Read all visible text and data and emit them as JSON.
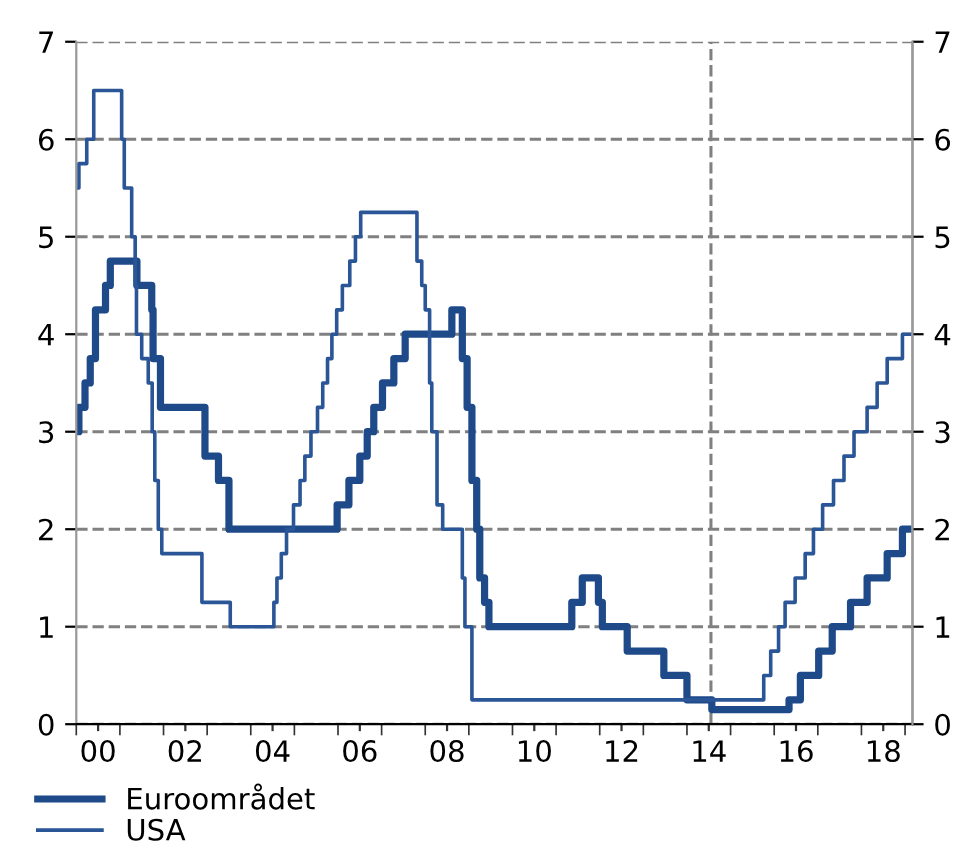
{
  "chart_data": {
    "type": "step",
    "xlim": [
      -0.5,
      18.67
    ],
    "xticks": [
      {
        "value": -0.5,
        "label": null
      },
      {
        "value": 0.5,
        "label": null
      },
      {
        "value": 1.5,
        "label": null
      },
      {
        "value": 2.5,
        "label": null
      },
      {
        "value": 3.5,
        "label": null
      },
      {
        "value": 4.5,
        "label": null
      },
      {
        "value": 5.5,
        "label": null
      },
      {
        "value": 6.5,
        "label": null
      },
      {
        "value": 7.5,
        "label": null
      },
      {
        "value": 8.5,
        "label": null
      },
      {
        "value": 9.5,
        "label": null
      },
      {
        "value": 10.5,
        "label": null
      },
      {
        "value": 11.5,
        "label": null
      },
      {
        "value": 12.5,
        "label": null
      },
      {
        "value": 13.5,
        "label": null
      },
      {
        "value": 14.5,
        "label": null
      },
      {
        "value": 15.5,
        "label": null
      },
      {
        "value": 16.5,
        "label": null
      },
      {
        "value": 17.5,
        "label": null
      },
      {
        "value": 18.5,
        "label": null
      },
      {
        "value": 0,
        "label": "00"
      },
      {
        "value": 2,
        "label": "02"
      },
      {
        "value": 4,
        "label": "04"
      },
      {
        "value": 6,
        "label": "06"
      },
      {
        "value": 8,
        "label": "08"
      },
      10,
      12,
      14,
      16,
      18
    ],
    "ylim": [
      0,
      7
    ],
    "yticks": [
      0,
      1,
      2,
      3,
      4,
      5,
      6,
      7
    ],
    "y2lim": [
      0,
      7
    ],
    "y2ticks": [
      0,
      1,
      2,
      3,
      4,
      5,
      6,
      7
    ],
    "grid": "y",
    "legend": "bottom left",
    "line_style": "solid",
    "marker": "none",
    "ref_lines": [
      {
        "axis": "x",
        "value": 14.05,
        "label": null,
        "color": "#808080",
        "line_style": "dashed"
      }
    ],
    "series": [
      {
        "name": "Euroområdet",
        "color": "#1f4a8a",
        "x": [
          -0.5,
          -0.44,
          -0.3,
          -0.18,
          -0.06,
          0.17,
          0.28,
          0.89,
          1.23,
          1.26,
          1.43,
          2.45,
          2.76,
          3.0,
          5.48,
          5.75,
          6.0,
          6.17,
          6.32,
          6.52,
          6.78,
          7.04,
          8.11,
          8.35,
          8.46,
          8.57,
          8.68,
          8.75,
          8.86,
          8.96,
          10.86,
          11.1,
          11.47,
          11.56,
          12.13,
          12.97,
          13.5,
          14.07,
          15.84,
          16.1,
          16.52,
          16.83,
          17.25,
          17.63,
          18.09,
          18.44,
          18.67
        ],
        "values": [
          3.0,
          3.25,
          3.5,
          3.75,
          4.25,
          4.5,
          4.75,
          4.5,
          4.25,
          3.75,
          3.25,
          2.75,
          2.5,
          2.0,
          2.25,
          2.5,
          2.75,
          3.0,
          3.25,
          3.5,
          3.75,
          4.0,
          4.25,
          3.75,
          3.25,
          2.5,
          2.0,
          1.5,
          1.25,
          1.0,
          1.25,
          1.5,
          1.25,
          1.0,
          0.75,
          0.5,
          0.25,
          0.15,
          0.25,
          0.5,
          0.75,
          1.0,
          1.25,
          1.5,
          1.75,
          2.0,
          2.0
        ]
      },
      {
        "name": "USA",
        "color": "#2a5596",
        "x": [
          -0.5,
          -0.44,
          -0.26,
          -0.1,
          0.54,
          0.6,
          0.77,
          0.85,
          0.88,
          1.0,
          1.15,
          1.24,
          1.3,
          1.38,
          1.46,
          2.38,
          3.03,
          4.03,
          4.1,
          4.2,
          4.32,
          4.48,
          4.63,
          4.74,
          4.88,
          5.03,
          5.15,
          5.26,
          5.36,
          5.47,
          5.6,
          5.77,
          5.9,
          6.02,
          7.31,
          7.42,
          7.5,
          7.6,
          7.65,
          7.77,
          7.9,
          8.35,
          8.41,
          8.57,
          15.26,
          15.42,
          15.6,
          15.75,
          15.98,
          16.21,
          16.4,
          16.61,
          16.86,
          17.1,
          17.33,
          17.63,
          17.86,
          18.09,
          18.44,
          18.67
        ],
        "values": [
          5.5,
          5.75,
          6.0,
          6.5,
          6.0,
          5.5,
          5.0,
          4.5,
          4.0,
          3.75,
          3.5,
          3.0,
          2.5,
          2.0,
          1.75,
          1.25,
          1.0,
          1.25,
          1.5,
          1.75,
          2.0,
          2.25,
          2.5,
          2.75,
          3.0,
          3.25,
          3.5,
          3.75,
          4.0,
          4.25,
          4.5,
          4.75,
          5.0,
          5.25,
          4.75,
          4.5,
          4.25,
          3.5,
          3.0,
          2.25,
          2.0,
          1.5,
          1.0,
          0.25,
          0.5,
          0.75,
          1.0,
          1.25,
          1.5,
          1.75,
          2.0,
          2.25,
          2.5,
          2.75,
          3.0,
          3.25,
          3.5,
          3.75,
          4.0,
          4.0
        ]
      }
    ]
  }
}
